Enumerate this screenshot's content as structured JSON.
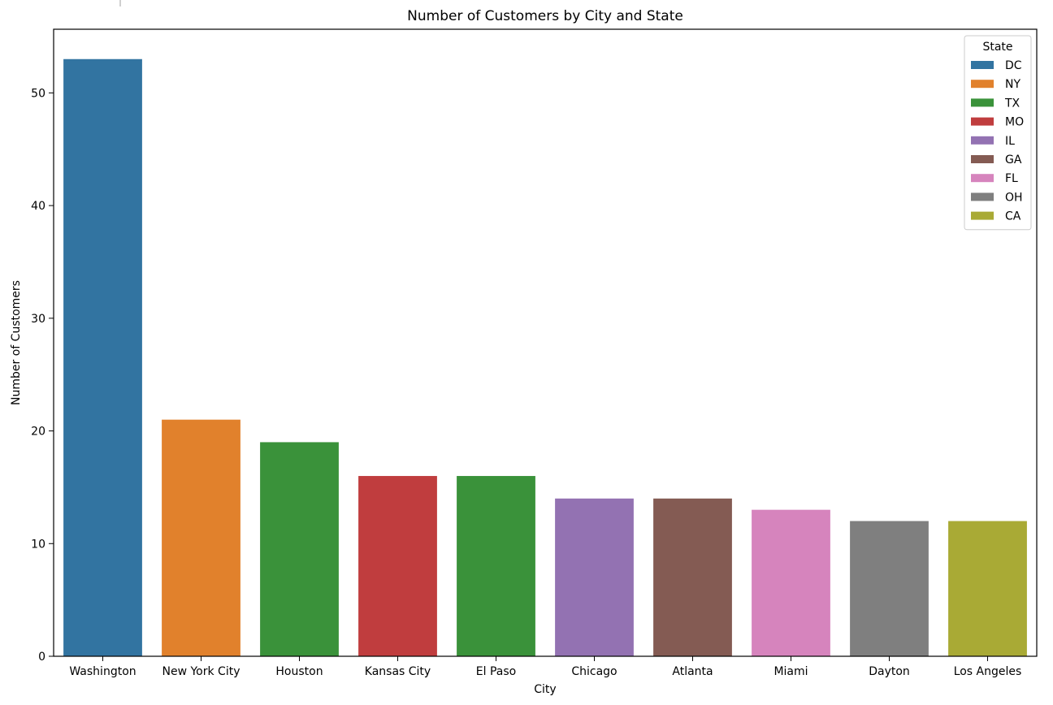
{
  "chart_data": {
    "type": "bar",
    "title": "Number of Customers by City and State",
    "xlabel": "City",
    "ylabel": "Number of Customers",
    "ylim": [
      0,
      55.65
    ],
    "yticks": [
      0,
      10,
      20,
      30,
      40,
      50
    ],
    "grid": false,
    "categories": [
      "Washington",
      "New York City",
      "Houston",
      "Kansas City",
      "El Paso",
      "Chicago",
      "Atlanta",
      "Miami",
      "Dayton",
      "Los Angeles"
    ],
    "values": [
      53,
      21,
      19,
      16,
      16,
      14,
      14,
      13,
      12,
      12
    ],
    "states": [
      "DC",
      "NY",
      "TX",
      "MO",
      "TX",
      "IL",
      "GA",
      "FL",
      "OH",
      "CA"
    ],
    "legend": {
      "title": "State",
      "placement": "top-right",
      "entries": [
        {
          "label": "DC",
          "color": "#3274a1"
        },
        {
          "label": "NY",
          "color": "#e1812c"
        },
        {
          "label": "TX",
          "color": "#3a923a"
        },
        {
          "label": "MO",
          "color": "#c03d3e"
        },
        {
          "label": "IL",
          "color": "#9372b2"
        },
        {
          "label": "GA",
          "color": "#845b53"
        },
        {
          "label": "FL",
          "color": "#d684bd"
        },
        {
          "label": "OH",
          "color": "#7f7f7f"
        },
        {
          "label": "CA",
          "color": "#a9aa35"
        }
      ]
    }
  }
}
